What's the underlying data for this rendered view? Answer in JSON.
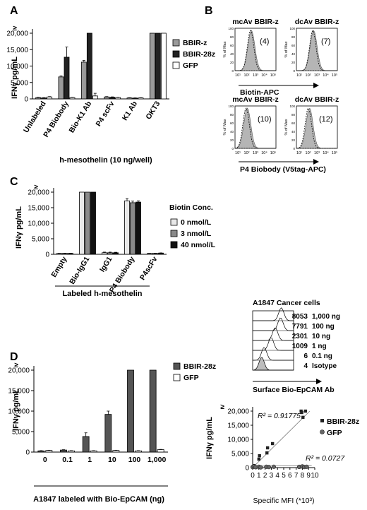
{
  "panels": {
    "A": {
      "letter": "A",
      "type": "bar",
      "ylabel": "IFNγ pg/mL",
      "ytick_labels": [
        "0",
        "5,000",
        "10,000",
        "15,000",
        "20,000",
        "≥"
      ],
      "yticks": [
        0,
        5000,
        10000,
        15000,
        20000
      ],
      "ylim": [
        0,
        20000
      ],
      "categories": [
        "Unlabeled",
        "P4 Biobody",
        "Bio-K1 Ab",
        "P4 scFv",
        "K1 Ab",
        "OKT3"
      ],
      "series": [
        {
          "name": "BBIR-z",
          "color": "#9a9a9a",
          "values": [
            400,
            6700,
            11200,
            600,
            300,
            20000
          ],
          "errors": [
            100,
            300,
            500,
            100,
            80,
            0
          ]
        },
        {
          "name": "BBIR-28z",
          "color": "#222222",
          "values": [
            300,
            12700,
            20000,
            500,
            250,
            20000
          ],
          "errors": [
            80,
            3100,
            0,
            120,
            60,
            0
          ]
        },
        {
          "name": "GFP",
          "color": "#ffffff",
          "values": [
            600,
            400,
            900,
            400,
            300,
            20000
          ],
          "errors": [
            100,
            80,
            800,
            80,
            60,
            0
          ]
        }
      ],
      "xlabel": "h-mesothelin (10 ng/well)"
    },
    "B": {
      "letter": "B",
      "histograms": [
        {
          "title": "mcAv BBIR-z",
          "value": "(4)"
        },
        {
          "title": "dcAv BBIR-z",
          "value": "(7)"
        },
        {
          "title": "mcAv BBIR-z",
          "value": "(10)"
        },
        {
          "title": "dcAv BBIR-z",
          "value": "(12)"
        }
      ],
      "y_axis_label": "% of Max",
      "y_tick_labels": [
        "0",
        "20",
        "40",
        "60",
        "80",
        "100"
      ],
      "x_tick_labels": [
        "10¹",
        "10²",
        "10³",
        "10⁴",
        "10⁵"
      ],
      "xlabel_top": "Biotin-APC",
      "xlabel_bottom": "P4 Biobody (V5tag-APC)"
    },
    "C": {
      "letter": "C",
      "type": "bar",
      "ylabel": "IFNγ pg/mL",
      "ytick_labels": [
        "0",
        "5,000",
        "10,000",
        "15,000",
        "20,000",
        "≥"
      ],
      "yticks": [
        0,
        5000,
        10000,
        15000,
        20000
      ],
      "ylim": [
        0,
        20000
      ],
      "legend_title": "Biotin Conc.",
      "categories": [
        "Empty",
        "Bio-IgG1",
        "IgG1",
        "P4 Biobody",
        "P4scFv"
      ],
      "series": [
        {
          "name": "0 nmol/L",
          "color": "#e8e8e8",
          "values": [
            300,
            20000,
            500,
            17200,
            300
          ],
          "errors": [
            60,
            0,
            200,
            700,
            60
          ]
        },
        {
          "name": "3 nmol/L",
          "color": "#8a8a8a",
          "values": [
            300,
            20000,
            500,
            16600,
            300
          ],
          "errors": [
            60,
            0,
            200,
            500,
            60
          ]
        },
        {
          "name": "40 nmol/L",
          "color": "#111111",
          "values": [
            300,
            20000,
            500,
            16800,
            400
          ],
          "errors": [
            60,
            0,
            150,
            400,
            60
          ]
        }
      ],
      "xlabel": "Labeled h-mesothelin"
    },
    "D": {
      "letter": "D",
      "type": "bar",
      "ylabel": "IFNγ pg/mL",
      "ytick_labels": [
        "0",
        "5,000",
        "10,000",
        "15,000",
        "20,000",
        "≥"
      ],
      "yticks": [
        0,
        5000,
        10000,
        15000,
        20000
      ],
      "ylim": [
        0,
        20000
      ],
      "categories": [
        "0",
        "0.1",
        "1",
        "10",
        "100",
        "1,000"
      ],
      "series": [
        {
          "name": "BBIR-28z",
          "color": "#555555",
          "values": [
            300,
            500,
            3800,
            9200,
            20000,
            20000
          ],
          "errors": [
            60,
            80,
            900,
            800,
            0,
            0
          ]
        },
        {
          "name": "GFP",
          "color": "#ffffff",
          "values": [
            400,
            300,
            300,
            400,
            300,
            600
          ],
          "errors": [
            60,
            60,
            60,
            60,
            60,
            60
          ]
        }
      ],
      "xlabel": "A1847  labeled with Bio-EpCAM (ng)"
    },
    "cancer": {
      "title": "A1847 Cancer cells",
      "rows": [
        {
          "mfi": "8053",
          "label": "1,000 ng"
        },
        {
          "mfi": "7791",
          "label": "100 ng"
        },
        {
          "mfi": "2301",
          "label": "10 ng"
        },
        {
          "mfi": "1009",
          "label": "1 ng"
        },
        {
          "mfi": "6",
          "label": "0.1 ng"
        },
        {
          "mfi": "4",
          "label": "Isotype"
        }
      ],
      "xlabel": "Surface Bio-EpCAM Ab"
    },
    "scatter": {
      "type": "scatter",
      "ylabel": "IFNγ pg/mL",
      "ytick_labels": [
        "0",
        "5,000",
        "10,000",
        "15,000",
        "20,000",
        "≥"
      ],
      "yticks": [
        0,
        5000,
        10000,
        15000,
        20000
      ],
      "ylim": [
        0,
        20000
      ],
      "xlim": [
        0,
        10
      ],
      "xticks": [
        0,
        1,
        2,
        3,
        4,
        5,
        6,
        7,
        8,
        9,
        10
      ],
      "xlabel": "Specific MFI (*10³)",
      "r2_bbir": "R² = 0.91775",
      "r2_gfp": "R² = 0.0727",
      "series": [
        {
          "name": "BBIR-28z",
          "marker": "square",
          "points": [
            [
              0.1,
              300
            ],
            [
              0.2,
              700
            ],
            [
              1.0,
              3000
            ],
            [
              1.1,
              4200
            ],
            [
              2.3,
              5200
            ],
            [
              2.4,
              7000
            ],
            [
              3.2,
              8500
            ],
            [
              7.8,
              20500
            ],
            [
              8.1,
              17800
            ],
            [
              8.5,
              20500
            ],
            [
              7.9,
              19500
            ]
          ]
        },
        {
          "name": "GFP",
          "marker": "circle",
          "points": [
            [
              0.0,
              200
            ],
            [
              0.2,
              400
            ],
            [
              0.5,
              150
            ],
            [
              1.0,
              300
            ],
            [
              1.3,
              100
            ],
            [
              2.2,
              300
            ],
            [
              2.6,
              200
            ],
            [
              3.4,
              300
            ],
            [
              7.5,
              250
            ],
            [
              8.0,
              400
            ],
            [
              8.3,
              200
            ],
            [
              8.7,
              300
            ]
          ]
        }
      ]
    }
  }
}
